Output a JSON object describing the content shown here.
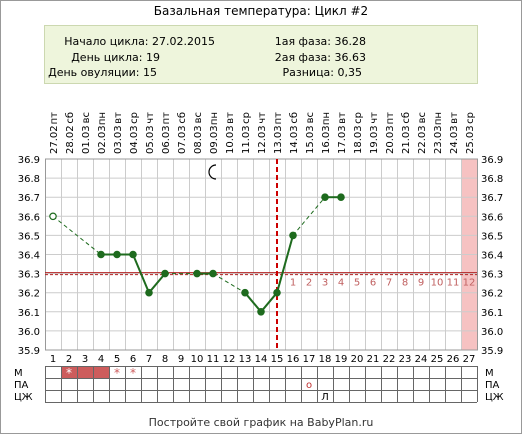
{
  "header": {
    "title": "Базальная температура: Цикл #2",
    "cycle_start_label": "Начало цикла: 27.02.2015",
    "cycle_day_label": "День цикла: 19",
    "ovulation_day_label": "День овуляции: 15",
    "phase1_label": "1ая фаза: 36.28",
    "phase2_label": "2ая фаза: 36.63",
    "difference_label": "Разница: 0,35"
  },
  "footer": {
    "text": "Постройте свой график на BabyPlan.ru"
  },
  "colors": {
    "line": "#1e6b1e",
    "point": "#1e6b1e",
    "coverline": "#b22222",
    "ovulation": "#cc0000",
    "highlight": "#f6c2c2",
    "info_bg": "#eef5dc",
    "grid": "#cccccc",
    "luteal_numbers": "#c06060",
    "menses": "#cd5c5c"
  },
  "chart_data": {
    "type": "line",
    "ylim": [
      35.9,
      36.9
    ],
    "yticks": [
      "35.9",
      "36.0",
      "36.1",
      "36.2",
      "36.3",
      "36.4",
      "36.5",
      "36.6",
      "36.7",
      "36.8",
      "36.9"
    ],
    "days": [
      "1",
      "2",
      "3",
      "4",
      "5",
      "6",
      "7",
      "8",
      "9",
      "10",
      "11",
      "12",
      "13",
      "14",
      "15",
      "16",
      "17",
      "18",
      "19",
      "20",
      "21",
      "22",
      "23",
      "24",
      "25",
      "26",
      "27"
    ],
    "dates": [
      "27.02",
      "28.02",
      "01.03",
      "02.03",
      "03.03",
      "04.03",
      "05.03",
      "06.03",
      "07.03",
      "08.03",
      "09.03",
      "10.03",
      "11.03",
      "12.03",
      "13.03",
      "14.03",
      "15.03",
      "16.03",
      "17.03",
      "18.03",
      "19.03",
      "20.03",
      "21.03",
      "22.03",
      "23.03",
      "24.03",
      "25.03"
    ],
    "weekdays": [
      "пт",
      "сб",
      "вс",
      "пн",
      "вт",
      "ср",
      "чт",
      "пт",
      "сб",
      "вс",
      "пн",
      "вт",
      "ср",
      "чт",
      "пт",
      "сб",
      "вс",
      "пн",
      "вт",
      "ср",
      "чт",
      "пт",
      "сб",
      "вс",
      "пн",
      "вт",
      "ср"
    ],
    "temperatures": [
      36.6,
      null,
      null,
      36.4,
      36.4,
      36.4,
      36.2,
      36.3,
      null,
      36.3,
      36.3,
      null,
      36.2,
      36.1,
      36.2,
      36.5,
      null,
      36.7,
      36.7,
      null,
      null,
      null,
      null,
      null,
      null,
      null,
      null
    ],
    "excluded_days": [
      1
    ],
    "coverline": 36.3,
    "ovulation_day": 15,
    "luteal_numbers": [
      "1",
      "2",
      "3",
      "4",
      "5",
      "6",
      "7",
      "8",
      "9",
      "10",
      "11",
      "12"
    ],
    "luteal_start_day": 16,
    "highlight_day": 27,
    "moon_day": 11,
    "rows": {
      "labels": [
        "М",
        "ПА",
        "ЦЖ"
      ],
      "menses_days": [
        2,
        3,
        4
      ],
      "menses_star_days": [
        2,
        5,
        6
      ],
      "pa_marks": [
        {
          "day": 17,
          "symbol": "о"
        }
      ],
      "cm_marks": [
        {
          "day": 18,
          "symbol": "Л"
        }
      ]
    }
  }
}
